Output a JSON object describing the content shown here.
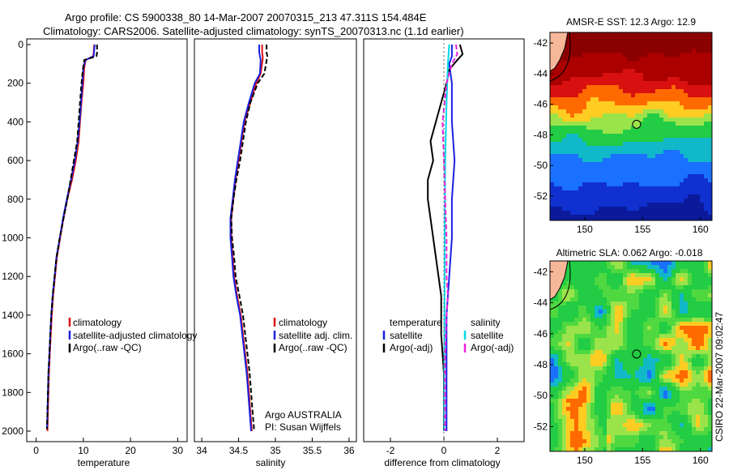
{
  "figure": {
    "title_line1": "Argo profile: CS 5900338_80 14-Mar-2007 20070315_213 47.311S 154.484E",
    "title_line2": "Climatology: CARS2006. Satellite-adjusted climatology: synTS_20070313.nc (1.1d earlier)",
    "credit": "CSIRO 22-Mar-2007 09:02:47"
  },
  "chart_data": [
    {
      "type": "line",
      "panel": "temperature",
      "xlabel": "temperature",
      "ylabel": "",
      "xlim": [
        -2,
        32
      ],
      "ylim": [
        2050,
        0
      ],
      "yreversed": true,
      "xticks": [
        0,
        10,
        20,
        30
      ],
      "yticks": [
        0,
        200,
        400,
        600,
        800,
        1000,
        1200,
        1400,
        1600,
        1800,
        2000
      ],
      "legend": {
        "position": "lower-middle",
        "labels": [
          "climatology",
          "satellite-adjusted climatology",
          "Argo(..raw -QC)"
        ]
      },
      "series": [
        {
          "name": "climatology",
          "color": "#e01010",
          "dash": "",
          "points": [
            [
              12.3,
              0
            ],
            [
              12.2,
              40
            ],
            [
              12.1,
              60
            ],
            [
              10.5,
              80
            ],
            [
              10.2,
              120
            ],
            [
              10.0,
              200
            ],
            [
              9.6,
              300
            ],
            [
              9.3,
              400
            ],
            [
              9.0,
              500
            ],
            [
              8.4,
              600
            ],
            [
              7.6,
              700
            ],
            [
              6.6,
              800
            ],
            [
              5.8,
              900
            ],
            [
              5.1,
              1000
            ],
            [
              4.4,
              1100
            ],
            [
              4.0,
              1200
            ],
            [
              3.6,
              1300
            ],
            [
              3.3,
              1400
            ],
            [
              3.1,
              1500
            ],
            [
              2.9,
              1600
            ],
            [
              2.7,
              1700
            ],
            [
              2.6,
              1800
            ],
            [
              2.5,
              1900
            ],
            [
              2.4,
              2000
            ]
          ]
        },
        {
          "name": "satellite-adjusted climatology",
          "color": "#1a22e0",
          "dash": "",
          "points": [
            [
              12.4,
              0
            ],
            [
              12.3,
              30
            ],
            [
              12.2,
              60
            ],
            [
              10.4,
              80
            ],
            [
              10.0,
              120
            ],
            [
              9.8,
              200
            ],
            [
              9.5,
              300
            ],
            [
              9.2,
              400
            ],
            [
              8.8,
              500
            ],
            [
              8.2,
              600
            ],
            [
              7.4,
              700
            ],
            [
              6.5,
              800
            ],
            [
              5.7,
              900
            ],
            [
              5.0,
              1000
            ],
            [
              4.3,
              1100
            ],
            [
              3.9,
              1200
            ],
            [
              3.5,
              1300
            ],
            [
              3.2,
              1400
            ],
            [
              3.0,
              1500
            ],
            [
              2.8,
              1600
            ],
            [
              2.6,
              1700
            ],
            [
              2.5,
              1800
            ],
            [
              2.4,
              1900
            ],
            [
              2.3,
              1990
            ]
          ]
        },
        {
          "name": "Argo(..raw -QC)",
          "color": "#000000",
          "dash": "6,3",
          "points": [
            [
              12.9,
              0
            ],
            [
              12.9,
              40
            ],
            [
              12.8,
              60
            ],
            [
              10.2,
              80
            ],
            [
              9.9,
              130
            ],
            [
              9.6,
              200
            ],
            [
              9.3,
              300
            ],
            [
              9.0,
              400
            ],
            [
              8.7,
              500
            ],
            [
              8.0,
              600
            ],
            [
              7.3,
              700
            ],
            [
              6.6,
              800
            ],
            [
              5.8,
              900
            ],
            [
              5.0,
              1000
            ],
            [
              4.3,
              1100
            ],
            [
              3.9,
              1200
            ],
            [
              3.5,
              1300
            ],
            [
              3.2,
              1400
            ],
            [
              3.0,
              1500
            ],
            [
              2.8,
              1600
            ],
            [
              2.6,
              1700
            ],
            [
              2.5,
              1800
            ],
            [
              2.4,
              1900
            ],
            [
              2.3,
              1990
            ]
          ]
        }
      ]
    },
    {
      "type": "line",
      "panel": "salinity",
      "xlabel": "salinity",
      "ylabel": "",
      "xlim": [
        33.9,
        36.1
      ],
      "ylim": [
        2050,
        0
      ],
      "yreversed": true,
      "xticks": [
        34,
        34.5,
        35,
        35.5,
        36
      ],
      "xticklabels": [
        "34",
        "34.5",
        "35",
        "35.5",
        "36"
      ],
      "yticks": [],
      "annotation": [
        "Argo AUSTRALIA",
        "PI: Susan Wijffels"
      ],
      "legend": {
        "position": "lower-middle",
        "labels": [
          "climatology",
          "satellite adj. clim.",
          "Argo(..raw -QC)"
        ]
      },
      "series": [
        {
          "name": "climatology",
          "color": "#e01010",
          "dash": "",
          "points": [
            [
              34.82,
              0
            ],
            [
              34.82,
              40
            ],
            [
              34.83,
              70
            ],
            [
              34.8,
              150
            ],
            [
              34.74,
              200
            ],
            [
              34.66,
              300
            ],
            [
              34.58,
              400
            ],
            [
              34.54,
              500
            ],
            [
              34.5,
              600
            ],
            [
              34.46,
              700
            ],
            [
              34.43,
              800
            ],
            [
              34.4,
              900
            ],
            [
              34.4,
              1000
            ],
            [
              34.42,
              1100
            ],
            [
              34.44,
              1200
            ],
            [
              34.48,
              1300
            ],
            [
              34.53,
              1400
            ],
            [
              34.56,
              1500
            ],
            [
              34.59,
              1600
            ],
            [
              34.62,
              1700
            ],
            [
              34.64,
              1800
            ],
            [
              34.66,
              1900
            ],
            [
              34.68,
              2000
            ]
          ]
        },
        {
          "name": "satellite adj. clim.",
          "color": "#1a22e0",
          "dash": "",
          "points": [
            [
              34.78,
              0
            ],
            [
              34.78,
              40
            ],
            [
              34.8,
              80
            ],
            [
              34.79,
              150
            ],
            [
              34.72,
              200
            ],
            [
              34.64,
              300
            ],
            [
              34.57,
              400
            ],
            [
              34.53,
              500
            ],
            [
              34.49,
              600
            ],
            [
              34.45,
              700
            ],
            [
              34.42,
              800
            ],
            [
              34.39,
              900
            ],
            [
              34.39,
              1000
            ],
            [
              34.41,
              1100
            ],
            [
              34.43,
              1200
            ],
            [
              34.47,
              1300
            ],
            [
              34.52,
              1400
            ],
            [
              34.55,
              1500
            ],
            [
              34.58,
              1600
            ],
            [
              34.61,
              1700
            ],
            [
              34.63,
              1800
            ],
            [
              34.65,
              1900
            ],
            [
              34.67,
              2000
            ]
          ]
        },
        {
          "name": "Argo(..raw -QC)",
          "color": "#000000",
          "dash": "6,3",
          "points": [
            [
              34.88,
              0
            ],
            [
              34.88,
              40
            ],
            [
              34.89,
              60
            ],
            [
              34.85,
              150
            ],
            [
              34.76,
              200
            ],
            [
              34.66,
              300
            ],
            [
              34.6,
              400
            ],
            [
              34.56,
              500
            ],
            [
              34.52,
              600
            ],
            [
              34.47,
              700
            ],
            [
              34.43,
              800
            ],
            [
              34.4,
              900
            ],
            [
              34.41,
              1000
            ],
            [
              34.44,
              1100
            ],
            [
              34.46,
              1200
            ],
            [
              34.51,
              1300
            ],
            [
              34.56,
              1400
            ],
            [
              34.59,
              1500
            ],
            [
              34.62,
              1600
            ],
            [
              34.65,
              1700
            ],
            [
              34.67,
              1800
            ],
            [
              34.69,
              1900
            ],
            [
              34.71,
              1990
            ]
          ]
        }
      ]
    },
    {
      "type": "line",
      "panel": "difference",
      "xlabel": "difference from climatology",
      "ylabel": "",
      "xlim": [
        -3.0,
        3.0
      ],
      "ylim": [
        2050,
        0
      ],
      "yreversed": true,
      "xticks": [
        -2,
        0,
        2
      ],
      "yticks": [],
      "legend": {
        "position": "lower-middle",
        "groups": [
          "temperature",
          "salinity"
        ],
        "labels": [
          "satellite",
          "Argo(-adj)",
          "satellite",
          "Argo(-adj)"
        ]
      },
      "series": [
        {
          "name": "temperature satellite",
          "color": "#1a22e0",
          "dash": "",
          "points": [
            [
              0.3,
              0
            ],
            [
              0.3,
              60
            ],
            [
              0.2,
              100
            ],
            [
              0.3,
              200
            ],
            [
              0.3,
              400
            ],
            [
              0.4,
              600
            ],
            [
              0.3,
              800
            ],
            [
              0.3,
              1000
            ],
            [
              0.2,
              1200
            ],
            [
              0.1,
              1400
            ],
            [
              0.1,
              1600
            ],
            [
              0.1,
              1800
            ],
            [
              0.1,
              2000
            ]
          ]
        },
        {
          "name": "temperature Argo(-adj)",
          "color": "#000000",
          "dash": "",
          "points": [
            [
              0.6,
              0
            ],
            [
              0.7,
              50
            ],
            [
              0.5,
              80
            ],
            [
              0.2,
              130
            ],
            [
              0.1,
              200
            ],
            [
              -0.1,
              300
            ],
            [
              -0.3,
              400
            ],
            [
              -0.5,
              500
            ],
            [
              -0.4,
              600
            ],
            [
              -0.6,
              700
            ],
            [
              -0.6,
              800
            ],
            [
              -0.5,
              900
            ],
            [
              -0.4,
              1000
            ],
            [
              -0.3,
              1100
            ],
            [
              -0.2,
              1200
            ],
            [
              -0.1,
              1300
            ],
            [
              -0.1,
              1500
            ],
            [
              0.0,
              1700
            ],
            [
              0.0,
              2000
            ]
          ]
        },
        {
          "name": "salinity satellite",
          "color": "#00d8e8",
          "dash": "",
          "points": [
            [
              0.2,
              0
            ],
            [
              0.15,
              100
            ],
            [
              0.1,
              300
            ],
            [
              0.05,
              600
            ],
            [
              0.03,
              1000
            ],
            [
              0.02,
              1400
            ],
            [
              0.01,
              1800
            ],
            [
              0.01,
              2000
            ]
          ]
        },
        {
          "name": "salinity Argo(-adj)",
          "color": "#ee22dd",
          "dash": "6,3",
          "points": [
            [
              0.45,
              0
            ],
            [
              0.5,
              50
            ],
            [
              0.3,
              100
            ],
            [
              0.1,
              200
            ],
            [
              -0.05,
              400
            ],
            [
              0.0,
              600
            ],
            [
              0.05,
              800
            ],
            [
              0.1,
              1000
            ],
            [
              0.1,
              1200
            ],
            [
              0.15,
              1300
            ],
            [
              0.1,
              1400
            ],
            [
              0.05,
              1600
            ],
            [
              0.05,
              1800
            ],
            [
              0.05,
              2000
            ]
          ]
        }
      ]
    },
    {
      "type": "heatmap",
      "panel": "sst_map",
      "title": "AMSR-E SST: 12.3 Argo: 12.9",
      "xlim": [
        147,
        161
      ],
      "ylim": [
        -53.6,
        -41.3
      ],
      "xticks": [
        150,
        155,
        160
      ],
      "yticks": [
        -42,
        -44,
        -46,
        -48,
        -50,
        -52
      ],
      "profile_location": {
        "lon": 154.484,
        "lat": -47.311
      },
      "bands_lat_to_color": [
        [
          -41.3,
          "#8b0000"
        ],
        [
          -43.0,
          "#aa0000"
        ],
        [
          -44.2,
          "#d81010"
        ],
        [
          -45.0,
          "#ff6a00"
        ],
        [
          -46.0,
          "#ffcc22"
        ],
        [
          -46.7,
          "#9be34a"
        ],
        [
          -47.2,
          "#22cc44"
        ],
        [
          -48.2,
          "#11b8c8"
        ],
        [
          -49.4,
          "#1a70ff"
        ],
        [
          -51.0,
          "#1030d0"
        ],
        [
          -52.5,
          "#0a1a9a"
        ]
      ]
    },
    {
      "type": "heatmap",
      "panel": "sla_map",
      "title": "Altimetric SLA: 0.062 Argo: -0.018",
      "xlim": [
        147,
        161
      ],
      "ylim": [
        -53.6,
        -41.3
      ],
      "xticks": [
        150,
        155,
        160
      ],
      "yticks": [
        -42,
        -44,
        -46,
        -48,
        -50,
        -52
      ],
      "profile_location": {
        "lon": 154.484,
        "lat": -47.311
      }
    }
  ]
}
